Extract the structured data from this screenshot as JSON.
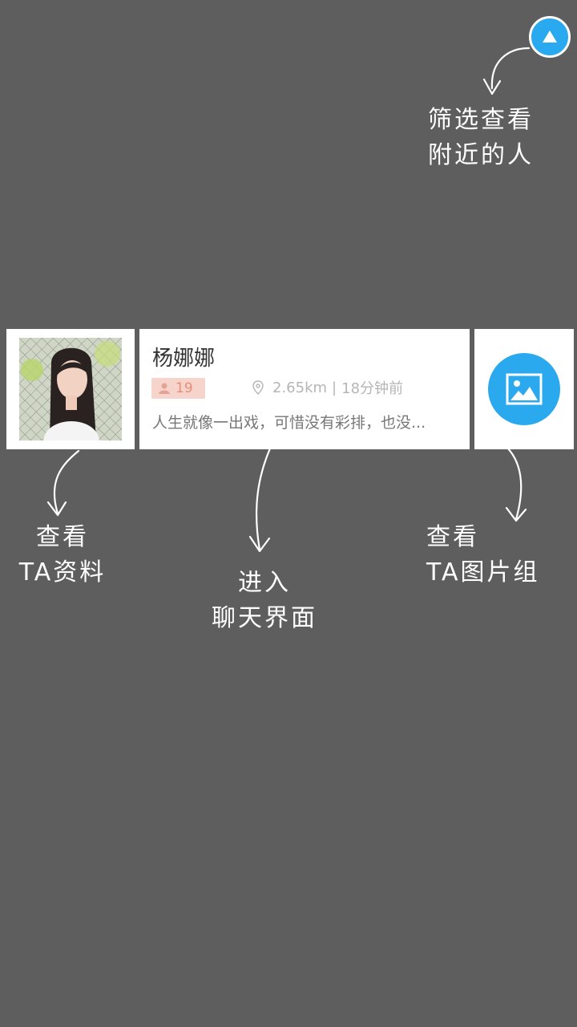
{
  "profile": {
    "name": "杨娜娜",
    "age": "19",
    "distance": "2.65km",
    "separator": "|",
    "last_active": "18分钟前",
    "bio": "人生就像一出戏，可惜没有彩排，也没..."
  },
  "hints": {
    "filter": [
      "筛选查看",
      "附近的人"
    ],
    "profile": [
      "查看",
      "TA资料"
    ],
    "chat": [
      "进入",
      "聊天界面"
    ],
    "gallery": [
      "查看",
      "TA图片组"
    ]
  },
  "icons": {
    "filter": "triangle-up-icon",
    "age": "person-icon",
    "location": "location-pin-icon",
    "gallery": "image-icon"
  },
  "colors": {
    "overlay": "#5e5e5e",
    "accent": "#29a9ef",
    "badge_bg": "#f6d3cb",
    "badge_text": "#e88e7b"
  }
}
